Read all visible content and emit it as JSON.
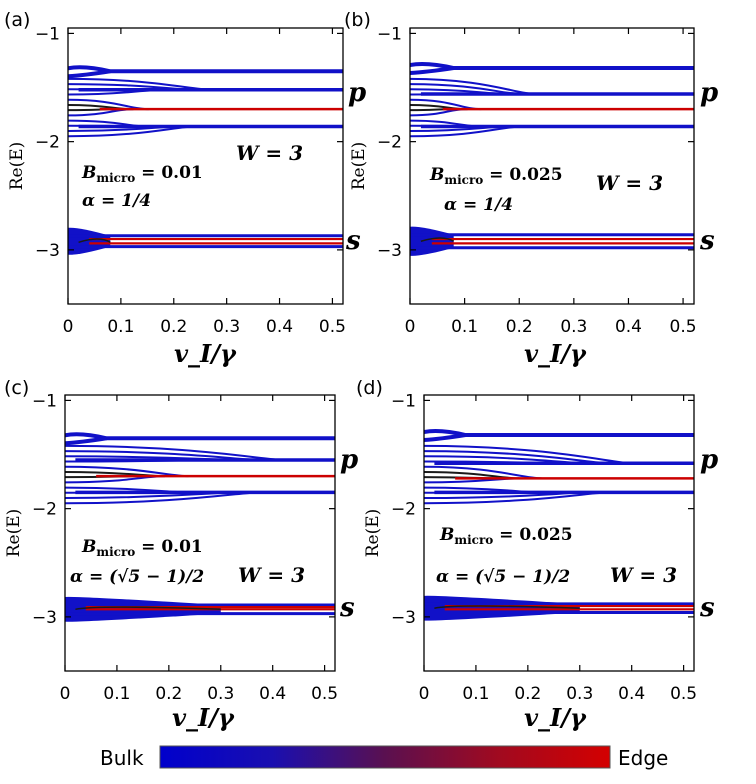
{
  "figure": {
    "colorbar": {
      "left_label": "Bulk",
      "right_label": "Edge",
      "colors": [
        "#0000cc",
        "#1a0fb0",
        "#5a1050",
        "#a00a20",
        "#d40000"
      ]
    },
    "colors": {
      "bulk": "#1111c8",
      "mid": "#1a1a1a",
      "edge": "#cc0000"
    }
  },
  "chart_data": [
    {
      "type": "line",
      "panel_label": "(a)",
      "xlabel": "v_I/γ",
      "ylabel": "Re(E)",
      "xlim": [
        0,
        0.52
      ],
      "ylim": [
        -3.5,
        -0.95
      ],
      "xticks": [
        0,
        0.1,
        0.2,
        0.3,
        0.4,
        0.5
      ],
      "xtick_labels": [
        "0",
        "0.1",
        "0.2",
        "0.3",
        "0.4",
        "0.5"
      ],
      "yticks": [
        -1,
        -2,
        -3
      ],
      "ytick_labels": [
        "−1",
        "−2",
        "−3"
      ],
      "band_labels": {
        "p": "p",
        "s": "s"
      },
      "annotations": {
        "B": "B_micro = 0.01",
        "alpha": "α = 1/4",
        "W": "W = 3"
      },
      "bands": {
        "top_level": -1.35,
        "p_levels": [
          -1.52,
          -1.7,
          -1.86
        ],
        "p_edge_level": -1.7,
        "p_merge_x": 0.27,
        "s_levels": [
          -2.87,
          -2.93,
          -2.97
        ],
        "s_edge_levels": [
          -2.9,
          -2.94
        ],
        "s_merge_x": 0.08
      }
    },
    {
      "type": "line",
      "panel_label": "(b)",
      "xlabel": "v_I/γ",
      "ylabel": "Re(E)",
      "xlim": [
        0,
        0.52
      ],
      "ylim": [
        -3.5,
        -0.95
      ],
      "xticks": [
        0,
        0.1,
        0.2,
        0.3,
        0.4,
        0.5
      ],
      "xtick_labels": [
        "0",
        "0.1",
        "0.2",
        "0.3",
        "0.4",
        "0.5"
      ],
      "yticks": [
        -1,
        -2,
        -3
      ],
      "ytick_labels": [
        "−1",
        "−2",
        "−3"
      ],
      "band_labels": {
        "p": "p",
        "s": "s"
      },
      "annotations": {
        "B": "B_micro = 0.025",
        "alpha": "α = 1/4",
        "W": "W = 3"
      },
      "bands": {
        "top_level": -1.32,
        "p_levels": [
          -1.56,
          -1.7,
          -1.86
        ],
        "p_edge_level": -1.7,
        "p_merge_x": 0.23,
        "s_levels": [
          -2.86,
          -2.92,
          -2.98
        ],
        "s_edge_levels": [
          -2.9,
          -2.94
        ],
        "s_merge_x": 0.08
      }
    },
    {
      "type": "line",
      "panel_label": "(c)",
      "xlabel": "v_I/γ",
      "ylabel": "Re(E)",
      "xlim": [
        0,
        0.52
      ],
      "ylim": [
        -3.5,
        -0.95
      ],
      "xticks": [
        0,
        0.1,
        0.2,
        0.3,
        0.4,
        0.5
      ],
      "xtick_labels": [
        "0",
        "0.1",
        "0.2",
        "0.3",
        "0.4",
        "0.5"
      ],
      "yticks": [
        -1,
        -2,
        -3
      ],
      "ytick_labels": [
        "−1",
        "−2",
        "−3"
      ],
      "band_labels": {
        "p": "p",
        "s": "s"
      },
      "annotations": {
        "B": "B_micro = 0.01",
        "alpha": "α = (√5 − 1)/2",
        "W": "W = 3"
      },
      "bands": {
        "top_level": -1.35,
        "p_levels": [
          -1.55,
          -1.7,
          -1.85
        ],
        "p_edge_level": -1.7,
        "p_merge_x": 0.42,
        "s_levels": [
          -2.89,
          -2.93,
          -2.97
        ],
        "s_edge_levels": [
          -2.91,
          -2.93
        ],
        "s_merge_x": 0.3
      }
    },
    {
      "type": "line",
      "panel_label": "(d)",
      "xlabel": "v_I/γ",
      "ylabel": "Re(E)",
      "xlim": [
        0,
        0.52
      ],
      "ylim": [
        -3.5,
        -0.95
      ],
      "xticks": [
        0,
        0.1,
        0.2,
        0.3,
        0.4,
        0.5
      ],
      "xtick_labels": [
        "0",
        "0.1",
        "0.2",
        "0.3",
        "0.4",
        "0.5"
      ],
      "yticks": [
        -1,
        -2,
        -3
      ],
      "ytick_labels": [
        "−1",
        "−2",
        "−3"
      ],
      "band_labels": {
        "p": "p",
        "s": "s"
      },
      "annotations": {
        "B": "B_micro = 0.025",
        "alpha": "α = (√5 − 1)/2",
        "W": "W = 3"
      },
      "bands": {
        "top_level": -1.32,
        "p_levels": [
          -1.58,
          -1.72,
          -1.85
        ],
        "p_edge_level": -1.72,
        "p_merge_x": 0.4,
        "s_levels": [
          -2.88,
          -2.92,
          -2.96
        ],
        "s_edge_levels": [
          -2.9,
          -2.93
        ],
        "s_merge_x": 0.3
      }
    }
  ]
}
